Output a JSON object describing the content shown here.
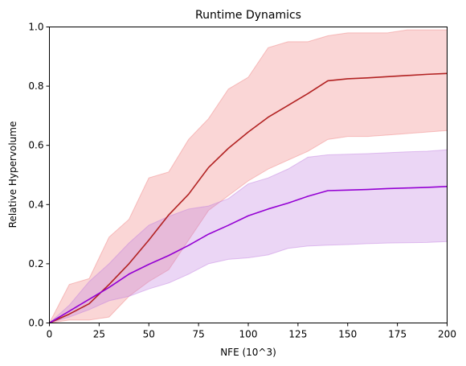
{
  "chart_data": {
    "type": "line",
    "title": "Runtime Dynamics",
    "xlabel": "NFE (10^3)",
    "ylabel": "Relative Hypervolume",
    "xlim": [
      0,
      200
    ],
    "ylim": [
      0,
      1.0
    ],
    "xticks": [
      0,
      25,
      50,
      75,
      100,
      125,
      150,
      175,
      200
    ],
    "xtick_labels": [
      "0",
      "25",
      "50",
      "75",
      "100",
      "125",
      "150",
      "175",
      "200"
    ],
    "yticks": [
      0.0,
      0.2,
      0.4,
      0.6,
      0.8,
      1.0
    ],
    "ytick_labels": [
      "0.0",
      "0.2",
      "0.4",
      "0.6",
      "0.8",
      "1.0"
    ],
    "grid": false,
    "series": [
      {
        "color": "#b22222",
        "band_color": "#f08080",
        "x": [
          0,
          10,
          20,
          30,
          40,
          50,
          60,
          70,
          80,
          90,
          100,
          110,
          120,
          130,
          140,
          150,
          160,
          170,
          180,
          190,
          200
        ],
        "y": [
          0.0,
          0.03,
          0.065,
          0.13,
          0.2,
          0.28,
          0.365,
          0.435,
          0.525,
          0.59,
          0.645,
          0.695,
          0.735,
          0.775,
          0.818,
          0.825,
          0.828,
          0.832,
          0.836,
          0.84,
          0.843
        ],
        "lower": [
          0.0,
          0.01,
          0.01,
          0.02,
          0.09,
          0.14,
          0.18,
          0.28,
          0.38,
          0.43,
          0.48,
          0.52,
          0.55,
          0.58,
          0.62,
          0.63,
          0.63,
          0.635,
          0.64,
          0.645,
          0.65
        ],
        "upper": [
          0.0,
          0.13,
          0.15,
          0.29,
          0.35,
          0.49,
          0.51,
          0.62,
          0.69,
          0.79,
          0.83,
          0.93,
          0.95,
          0.95,
          0.97,
          0.98,
          0.98,
          0.98,
          0.99,
          0.99,
          0.99
        ]
      },
      {
        "color": "#9400d3",
        "band_color": "#c07ee0",
        "x": [
          0,
          10,
          20,
          30,
          40,
          50,
          60,
          70,
          80,
          90,
          100,
          110,
          120,
          130,
          140,
          150,
          160,
          170,
          180,
          190,
          200
        ],
        "y": [
          0.0,
          0.04,
          0.08,
          0.12,
          0.165,
          0.198,
          0.228,
          0.262,
          0.3,
          0.33,
          0.362,
          0.385,
          0.405,
          0.428,
          0.447,
          0.449,
          0.451,
          0.454,
          0.456,
          0.458,
          0.461
        ],
        "lower": [
          0.0,
          0.02,
          0.045,
          0.075,
          0.09,
          0.115,
          0.135,
          0.165,
          0.2,
          0.215,
          0.22,
          0.23,
          0.252,
          0.26,
          0.263,
          0.265,
          0.268,
          0.27,
          0.271,
          0.272,
          0.275
        ],
        "upper": [
          0.0,
          0.06,
          0.14,
          0.2,
          0.27,
          0.33,
          0.36,
          0.385,
          0.395,
          0.42,
          0.47,
          0.49,
          0.52,
          0.56,
          0.568,
          0.57,
          0.572,
          0.575,
          0.578,
          0.58,
          0.585
        ]
      }
    ]
  }
}
